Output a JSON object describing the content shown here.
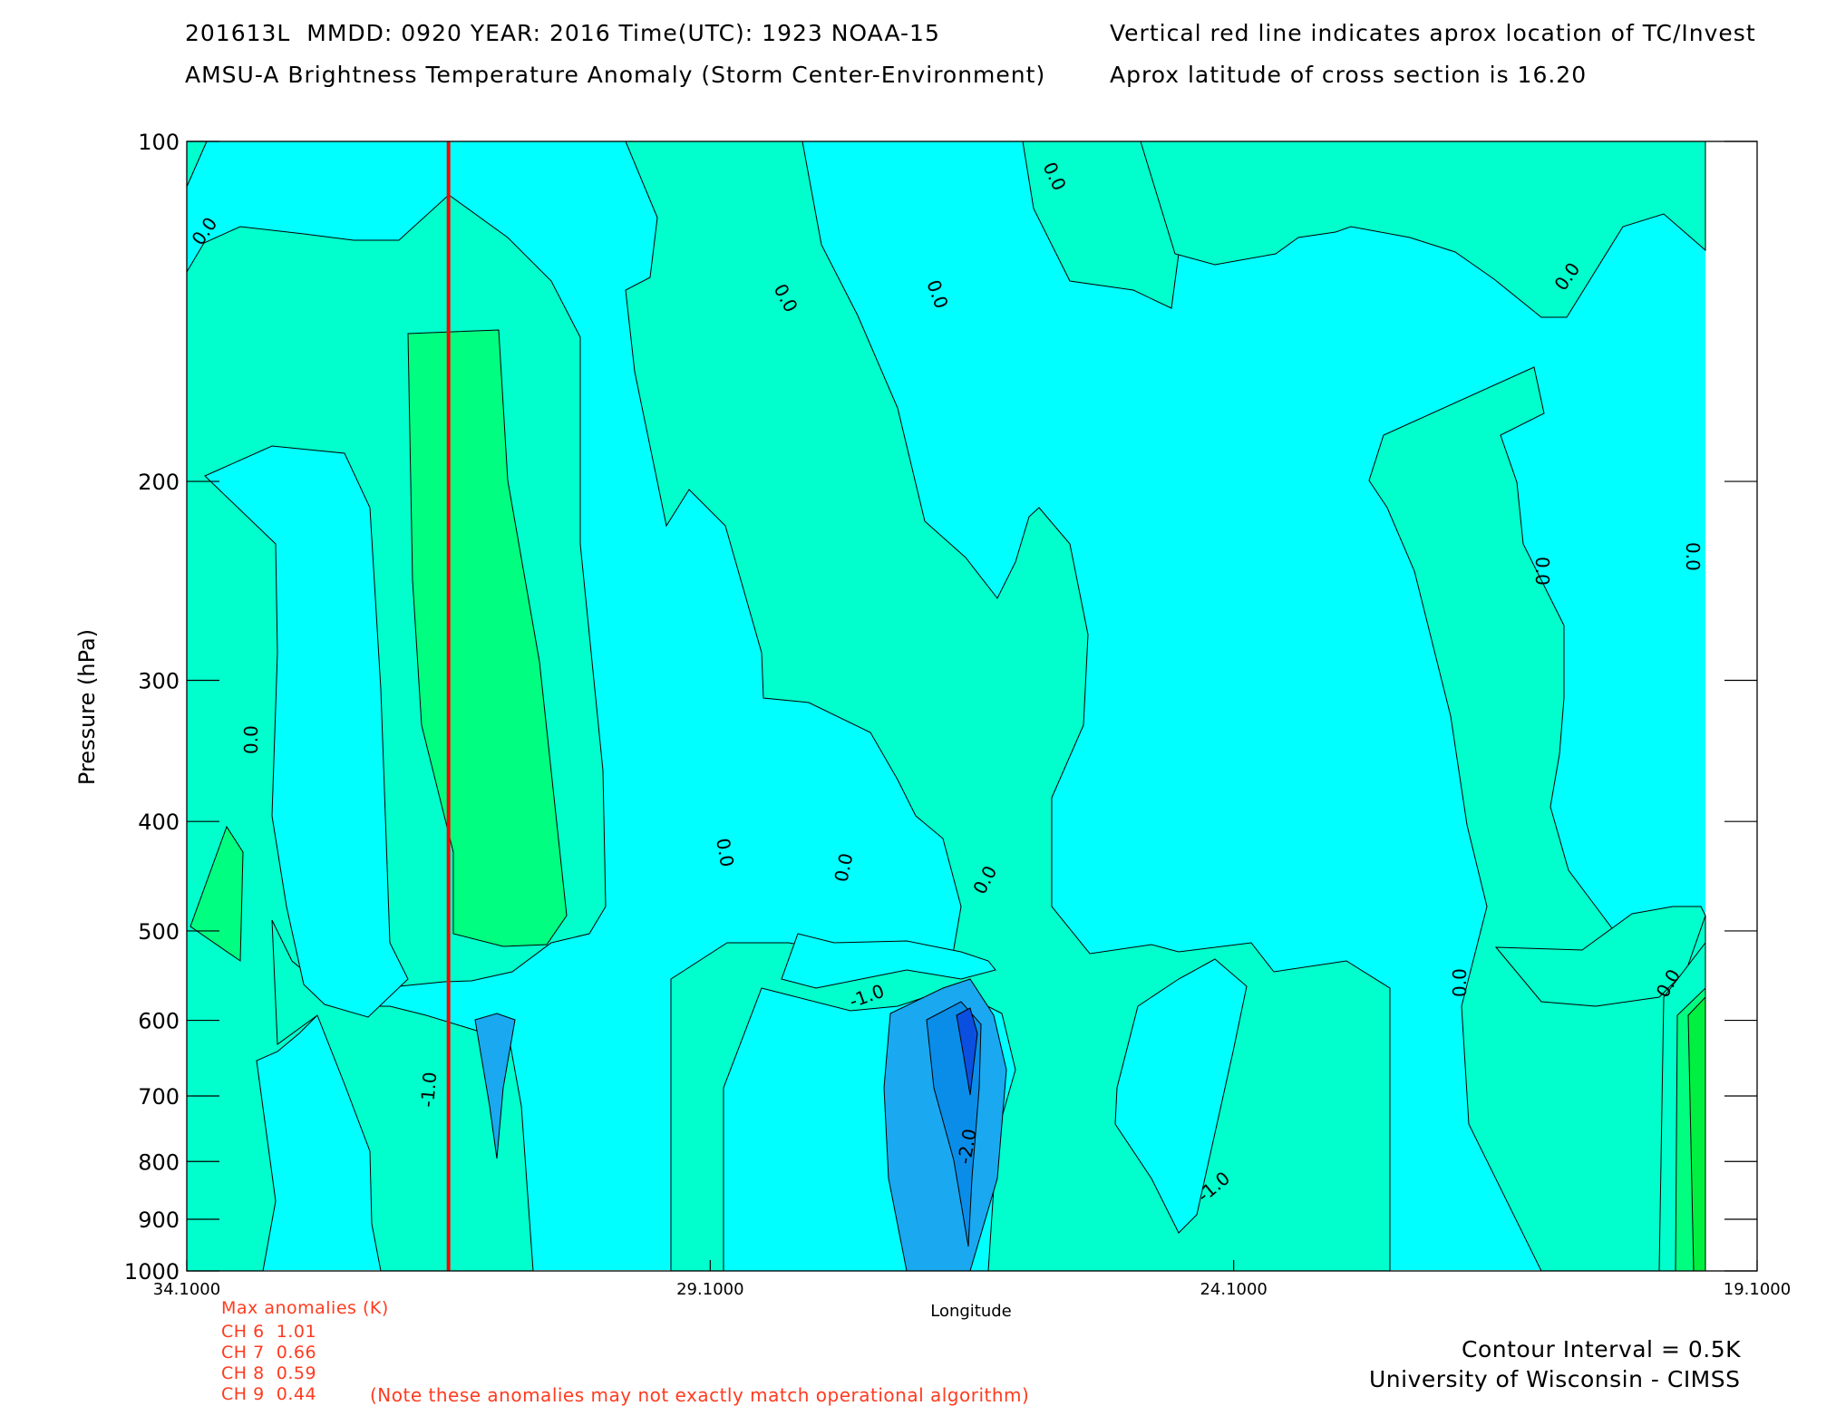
{
  "header": {
    "line1_left": "201613L  MMDD: 0920 YEAR: 2016 Time(UTC): 1923 NOAA-15",
    "line2_left": "AMSU-A Brightness Temperature Anomaly (Storm Center-Environment)",
    "line1_right": "Vertical red line indicates aprox location of TC/Invest",
    "line2_right": "Aprox latitude of cross section is 16.20"
  },
  "chart_data": {
    "type": "contour",
    "xlabel": "Longitude",
    "ylabel": "Pressure (hPa)",
    "xlim": [
      34.1,
      19.1
    ],
    "ylim": [
      1000,
      100
    ],
    "y_scale": "log",
    "x_ticks": [
      "34.1000",
      "29.1000",
      "24.1000",
      "19.1000"
    ],
    "y_ticks": [
      "100",
      "200",
      "300",
      "400",
      "500",
      "600",
      "700",
      "800",
      "900",
      "1000"
    ],
    "storm_center_longitude": 31.6,
    "storm_line_color": "#ff0000",
    "contour_interval_K": 0.5,
    "contour_labels": [
      "0.0",
      "-1.0",
      "-2.0"
    ],
    "colors": {
      "anomaly_neg_2_5": "#0a4fe0",
      "anomaly_neg_2": "#0a8de8",
      "anomaly_neg_1_5": "#1aa8f0",
      "anomaly_neg_1_to_neg_0_5": "#00ffff",
      "anomaly_neg_0_5_to_0": "#00ffcc",
      "anomaly_0_to_0_5": "#00ff80",
      "anomaly_0_5_plus": "#00f040",
      "anomaly_1_plus": "#00dd30"
    }
  },
  "max_anomalies": {
    "title": "Max anomalies (K)",
    "rows": [
      "CH 6  1.01",
      "CH 7  0.66",
      "CH 8  0.59",
      "CH 9  0.44"
    ],
    "note": "(Note these anomalies may not exactly match operational algorithm)"
  },
  "footer": {
    "contour_interval": "Contour Interval = 0.5K",
    "credit": "University of Wisconsin - CIMSS"
  }
}
